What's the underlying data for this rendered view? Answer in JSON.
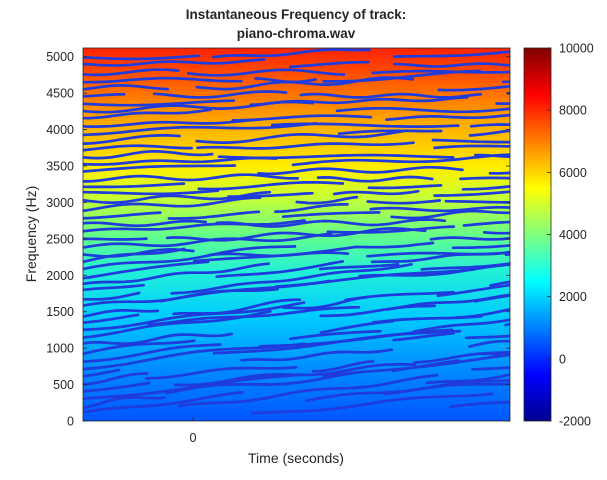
{
  "chart_data": {
    "type": "heatmap",
    "title_lines": [
      "Instantaneous Frequency of track:",
      "piano-chroma.wav"
    ],
    "xlabel": "Time (seconds)",
    "ylabel": "Frequency (Hz)",
    "ylim": [
      0,
      5120
    ],
    "yticks": [
      0,
      500,
      1000,
      1500,
      2000,
      2500,
      3000,
      3500,
      4000,
      4500,
      5000
    ],
    "xticks": [
      0
    ],
    "colorbar": {
      "range": [
        -2000,
        10000
      ],
      "ticks": [
        -2000,
        0,
        2000,
        4000,
        6000,
        8000,
        10000
      ],
      "colormap": "jet"
    },
    "background": "cell value approximately equals 2 × frequency (Hz)",
    "contour_color": "#1f3bdc"
  }
}
